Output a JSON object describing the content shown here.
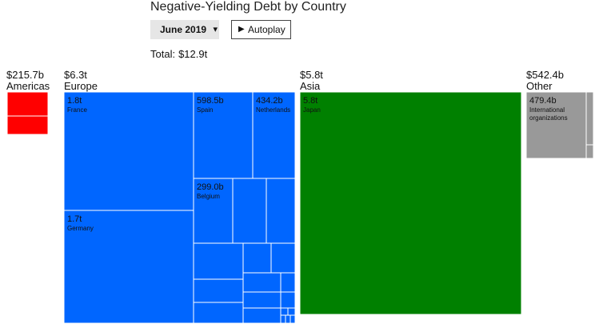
{
  "header": {
    "title": "Negative-Yielding Debt by Country",
    "month": "June 2019",
    "caret": "▾",
    "autoplay_label": "Autoplay",
    "autoplay_icon": "play-icon",
    "total_label": "Total:",
    "total_value": "$12.9t"
  },
  "colors": {
    "Americas": "#ff0000",
    "Europe": "#0066ff",
    "Asia": "#008000",
    "Other": "#999999",
    "label": "#111111"
  },
  "chart_data": {
    "type": "treemap",
    "title": "Negative-Yielding Debt by Country",
    "groups": [
      {
        "name": "Americas",
        "total": "$215.7b",
        "items": []
      },
      {
        "name": "Europe",
        "total": "$6.3t",
        "items": [
          {
            "name": "France",
            "value": "1.8t"
          },
          {
            "name": "Germany",
            "value": "1.7t"
          },
          {
            "name": "Spain",
            "value": "598.5b"
          },
          {
            "name": "Netherlands",
            "value": "434.2b"
          },
          {
            "name": "Belgium",
            "value": "299.0b"
          }
        ]
      },
      {
        "name": "Asia",
        "total": "$5.8t",
        "items": [
          {
            "name": "Japan",
            "value": "5.8t"
          }
        ]
      },
      {
        "name": "Other",
        "total": "$542.4b",
        "items": [
          {
            "name": "International organizations",
            "value": "479.4b"
          }
        ]
      }
    ]
  }
}
